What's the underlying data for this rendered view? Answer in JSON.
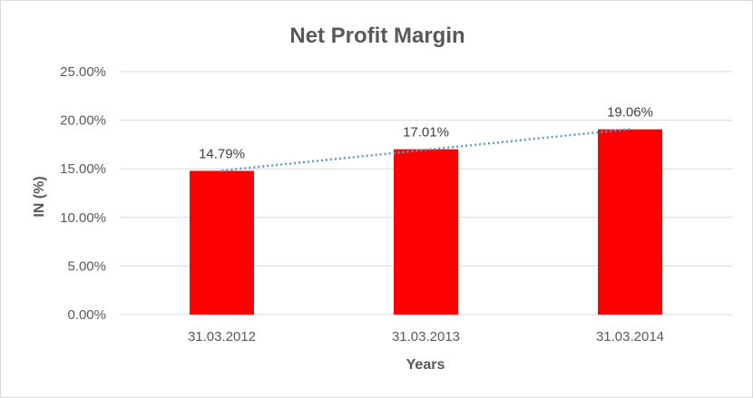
{
  "chart_data": {
    "type": "bar",
    "title": "Net Profit Margin",
    "xlabel": "Years",
    "ylabel": "IN (%)",
    "categories": [
      "31.03.2012",
      "31.03.2013",
      "31.03.2014"
    ],
    "values": [
      14.79,
      17.01,
      19.06
    ],
    "data_labels": [
      "14.79%",
      "17.01%",
      "19.06%"
    ],
    "ylim": [
      0,
      25
    ],
    "y_ticks": [
      0,
      5,
      10,
      15,
      20,
      25
    ],
    "y_tick_labels": [
      "0.00%",
      "5.00%",
      "10.00%",
      "15.00%",
      "20.00%",
      "25.00%"
    ],
    "grid": true,
    "legend": "none",
    "trendline": {
      "type": "linear",
      "style": "dotted"
    },
    "colors": {
      "bar": "#ff0000",
      "trendline": "#5b9bd5",
      "grid": "#d9d9d9",
      "text": "#595959"
    }
  }
}
